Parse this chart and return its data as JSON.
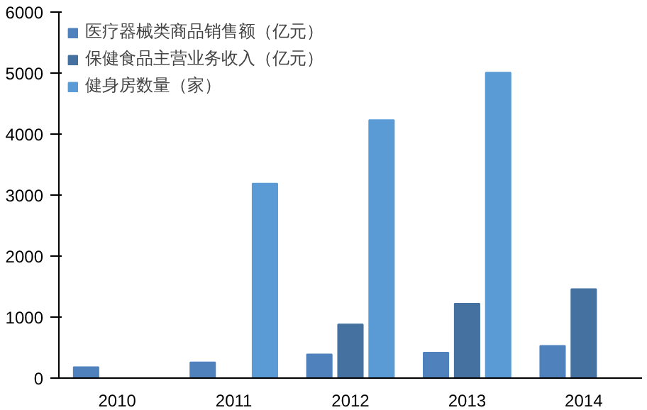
{
  "chart_data": {
    "type": "bar",
    "categories": [
      "2010",
      "2011",
      "2012",
      "2013",
      "2014"
    ],
    "series": [
      {
        "name": "医疗器械类商品销售额（亿元）",
        "color": "#4f81bd",
        "values": [
          180,
          260,
          390,
          420,
          530
        ]
      },
      {
        "name": "保健食品主营业务收入（亿元）",
        "color": "#44719f",
        "values": [
          null,
          null,
          880,
          1220,
          1460
        ]
      },
      {
        "name": "健身房数量（家）",
        "color": "#5b9bd5",
        "values": [
          null,
          3190,
          4230,
          5010,
          null
        ]
      }
    ],
    "ylim": [
      0,
      6000
    ],
    "yticks": [
      0,
      1000,
      2000,
      3000,
      4000,
      5000,
      6000
    ],
    "grid": false,
    "legend": "top left"
  }
}
